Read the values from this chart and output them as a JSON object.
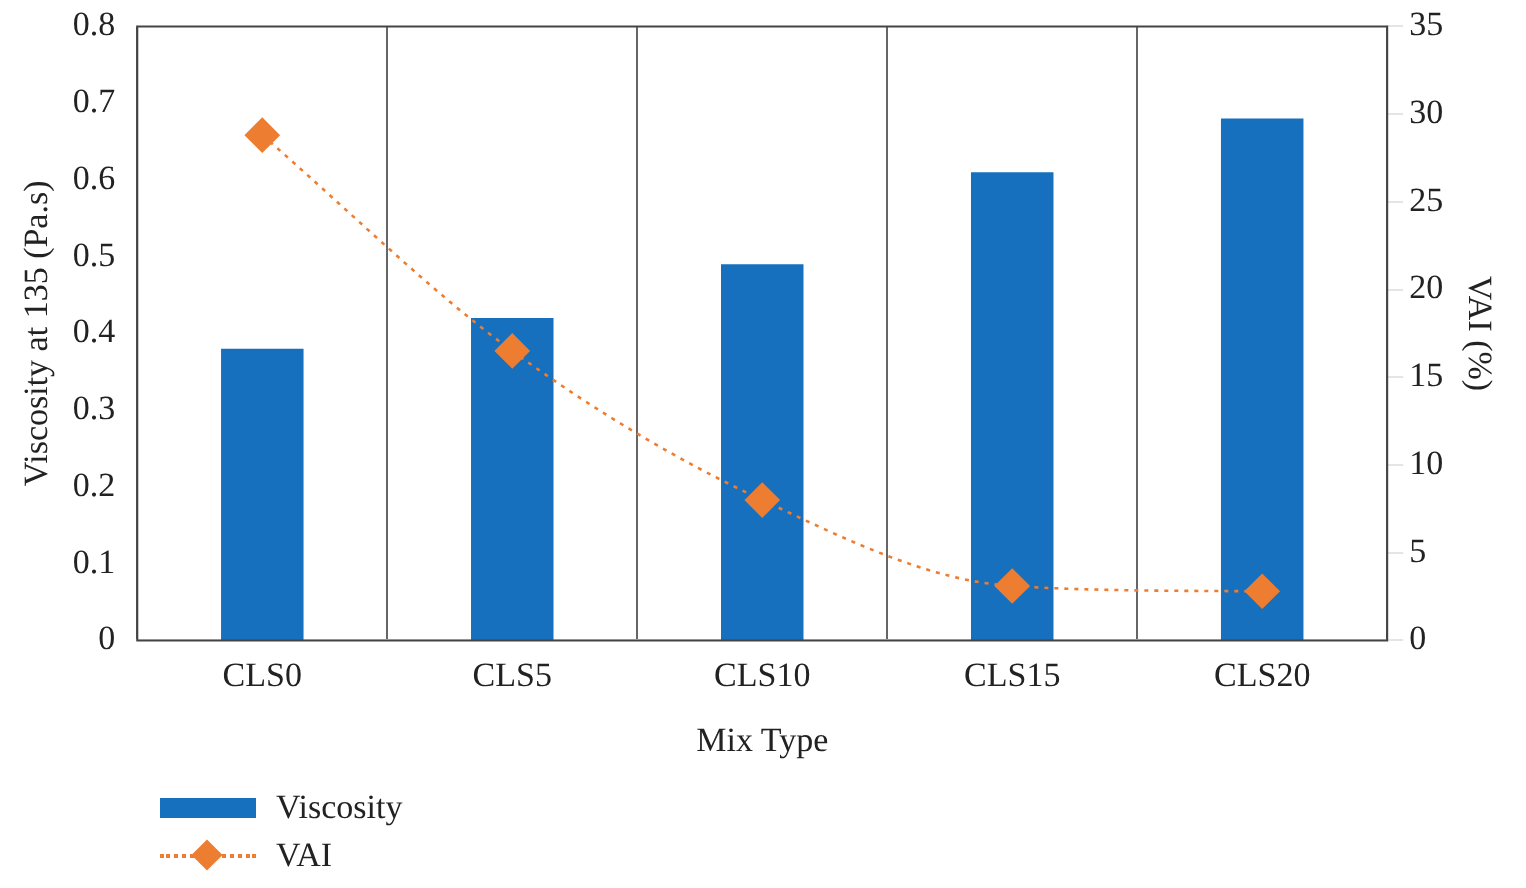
{
  "chart_data": {
    "type": "bar",
    "xlabel": "Mix Type",
    "ylabel": "Viscosity at 135 (Pa.s)",
    "y2label": "VAI (%)",
    "categories": [
      "CLS0",
      "CLS5",
      "CLS10",
      "CLS15",
      "CLS20"
    ],
    "series": [
      {
        "name": "Viscosity",
        "color": "#1670be",
        "values": [
          0.38,
          0.42,
          0.49,
          0.61,
          0.68
        ]
      },
      {
        "name": "VAI",
        "type": "line",
        "axis": "y2",
        "color": "#ed7d31",
        "marker": "diamond",
        "line_style": "dotted",
        "values": [
          28.8,
          16.5,
          8.0,
          3.1,
          2.8
        ]
      }
    ],
    "ylim": [
      0,
      0.8
    ],
    "yticks": [
      0,
      0.1,
      0.2,
      0.3,
      0.4,
      0.5,
      0.6,
      0.7,
      0.8
    ],
    "y2lim": [
      0,
      35
    ],
    "y2ticks": [
      0,
      5,
      10,
      15,
      20,
      25,
      30,
      35
    ],
    "grid": "x",
    "legend": "bottom left"
  }
}
